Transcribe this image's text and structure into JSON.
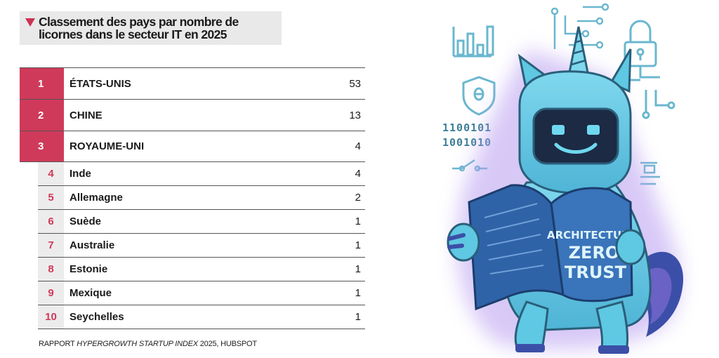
{
  "title": "Classement des pays par nombre de licornes dans le secteur IT en 2025",
  "rankings": [
    {
      "rank": "1",
      "country": "ÉTATS-UNIS",
      "count": "53"
    },
    {
      "rank": "2",
      "country": "CHINE",
      "count": "13"
    },
    {
      "rank": "3",
      "country": "ROYAUME-UNI",
      "count": "4"
    },
    {
      "rank": "4",
      "country": "Inde",
      "count": "4"
    },
    {
      "rank": "5",
      "country": "Allemagne",
      "count": "2"
    },
    {
      "rank": "6",
      "country": "Suède",
      "count": "1"
    },
    {
      "rank": "7",
      "country": "Australie",
      "count": "1"
    },
    {
      "rank": "8",
      "country": "Estonie",
      "count": "1"
    },
    {
      "rank": "9",
      "country": "Mexique",
      "count": "1"
    },
    {
      "rank": "10",
      "country": "Seychelles",
      "count": "1"
    }
  ],
  "source": {
    "prefix": "RAPPORT ",
    "report": "HYPERGROWTH STARTUP INDEX",
    "suffix": " 2025, HUBSPOT"
  },
  "illustration": {
    "book_line1": "ARCHITECTURE",
    "book_line2": "ZERO",
    "book_line3": "TRUST",
    "binary_line1": "1100101",
    "binary_line2": "1001010"
  },
  "colors": {
    "accent": "#cf3a5a",
    "unicorn_body": "#5fc8e3",
    "unicorn_mane": "#3b4fa8",
    "glow": "#b79cf0",
    "circuit": "#6ab7cf"
  }
}
